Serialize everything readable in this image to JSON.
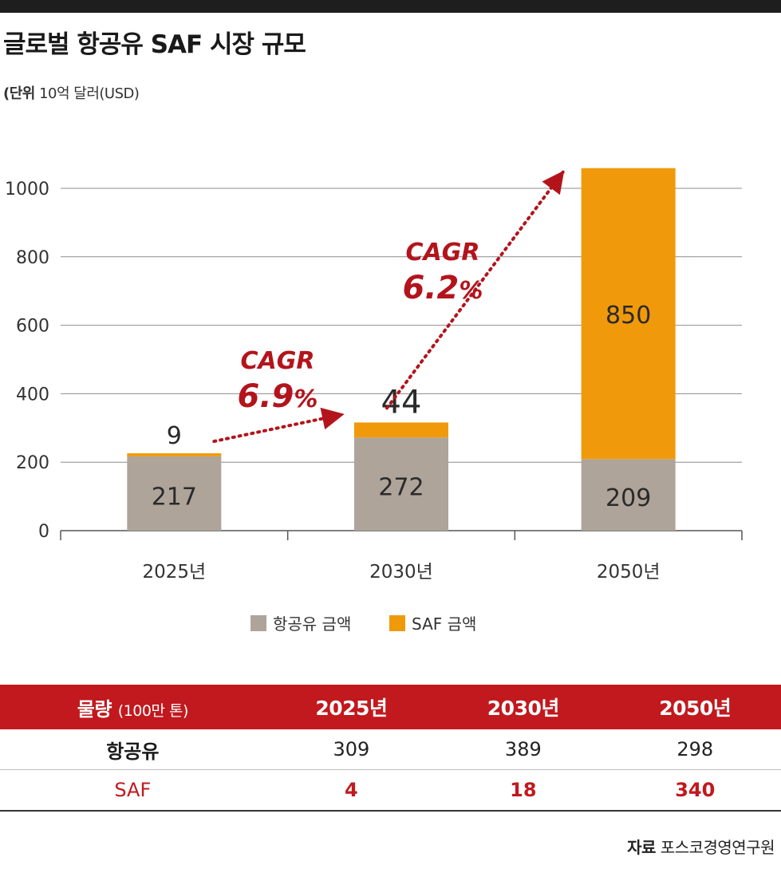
{
  "header": {
    "title": "글로벌 항공유 SAF 시장 규모",
    "unit_label": "(단위",
    "unit_value": " 10억 달러(USD)"
  },
  "chart_data": {
    "type": "bar",
    "stacked": true,
    "categories": [
      "2025년",
      "2030년",
      "2050년"
    ],
    "series": [
      {
        "name": "항공유 금액",
        "values": [
          217,
          272,
          209
        ],
        "color": "#aea499"
      },
      {
        "name": "SAF 금액",
        "values": [
          9,
          44,
          850
        ],
        "color": "#f09a0b"
      }
    ],
    "ylim": [
      0,
      1000
    ],
    "yticks": [
      "0",
      "200",
      "400",
      "600",
      "800",
      "1000"
    ],
    "grid": true,
    "legend_position": "bottom-center",
    "annotations": [
      {
        "line1": "CAGR",
        "line2": "6.9",
        "pct": "%",
        "from": "2025년",
        "to": "2030년"
      },
      {
        "line1": "CAGR",
        "line2": "6.2",
        "pct": "%",
        "from": "2030년",
        "to": "2050년"
      }
    ],
    "annotation_color": "#b3141c"
  },
  "table": {
    "corner_label": "물량",
    "corner_sub": "(100만 톤)",
    "columns": [
      "2025년",
      "2030년",
      "2050년"
    ],
    "rows": [
      {
        "label": "항공유",
        "values": [
          "309",
          "389",
          "298"
        ]
      },
      {
        "label": "SAF",
        "values": [
          "4",
          "18",
          "340"
        ]
      }
    ]
  },
  "source": {
    "label": "자료",
    "value": " 포스코경영연구원"
  }
}
